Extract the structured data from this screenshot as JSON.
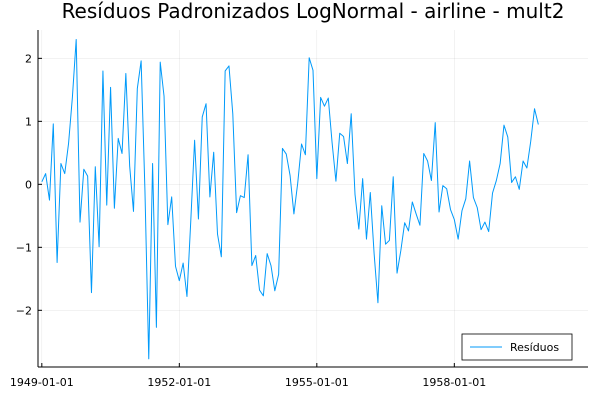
{
  "chart_data": {
    "type": "line",
    "title": "Resíduos Padronizados LogNormal - airline - mult2",
    "xlabel": "",
    "ylabel": "",
    "x_start": "1949-01",
    "x_step": "month",
    "xlim": [
      "1948-12",
      "1960-12"
    ],
    "ylim": [
      -2.9,
      2.45
    ],
    "x_ticks": [
      "1949-01-01",
      "1952-01-01",
      "1955-01-01",
      "1958-01-01"
    ],
    "y_ticks": [
      -2,
      -1,
      0,
      1,
      2
    ],
    "y_tick_labels": [
      "−2",
      "−1",
      "0",
      "1",
      "2"
    ],
    "grid": true,
    "legend_position": "bottom-right",
    "series": [
      {
        "name": "Resíduos",
        "color": "#009AFA",
        "values": [
          0.04,
          0.17,
          -0.25,
          0.96,
          -1.24,
          0.33,
          0.17,
          0.65,
          1.38,
          2.3,
          -0.6,
          0.24,
          0.13,
          -1.72,
          0.28,
          -0.99,
          1.8,
          -0.33,
          1.54,
          -0.38,
          0.73,
          0.49,
          1.76,
          0.29,
          -0.43,
          1.52,
          1.96,
          -0.1,
          -2.77,
          0.33,
          -2.27,
          1.94,
          1.4,
          -0.64,
          -0.2,
          -1.3,
          -1.53,
          -1.25,
          -1.78,
          -0.58,
          0.7,
          -0.55,
          1.07,
          1.28,
          -0.2,
          0.51,
          -0.79,
          -1.15,
          1.8,
          1.88,
          1.12,
          -0.45,
          -0.18,
          -0.21,
          0.47,
          -1.29,
          -1.13,
          -1.68,
          -1.77,
          -1.1,
          -1.29,
          -1.69,
          -1.43,
          0.57,
          0.48,
          0.14,
          -0.47,
          0.02,
          0.64,
          0.47,
          2.01,
          1.81,
          0.09,
          1.38,
          1.24,
          1.37,
          0.66,
          0.05,
          0.81,
          0.76,
          0.33,
          1.12,
          -0.16,
          -0.71,
          0.09,
          -0.87,
          -0.13,
          -1.1,
          -1.88,
          -0.34,
          -0.95,
          -0.89,
          0.12,
          -1.41,
          -1.05,
          -0.61,
          -0.74,
          -0.28,
          -0.47,
          -0.65,
          0.49,
          0.37,
          0.06,
          0.98,
          -0.44,
          -0.02,
          -0.07,
          -0.4,
          -0.56,
          -0.87,
          -0.42,
          -0.23,
          0.37,
          -0.21,
          -0.37,
          -0.72,
          -0.6,
          -0.75,
          -0.14,
          0.06,
          0.33,
          0.94,
          0.75,
          0.03,
          0.12,
          -0.08,
          0.37,
          0.26,
          0.68,
          1.2,
          0.95
        ]
      }
    ]
  }
}
